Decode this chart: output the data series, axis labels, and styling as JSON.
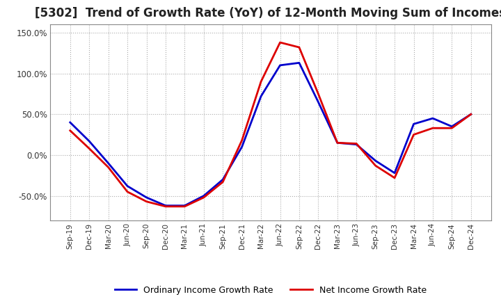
{
  "title": "[5302]  Trend of Growth Rate (YoY) of 12-Month Moving Sum of Incomes",
  "title_fontsize": 12,
  "background_color": "#ffffff",
  "grid_color": "#aaaaaa",
  "ordinary_color": "#0000cc",
  "net_color": "#dd0000",
  "x_labels": [
    "Sep-19",
    "Dec-19",
    "Mar-20",
    "Jun-20",
    "Sep-20",
    "Dec-20",
    "Mar-21",
    "Jun-21",
    "Sep-21",
    "Dec-21",
    "Mar-22",
    "Jun-22",
    "Sep-22",
    "Dec-22",
    "Mar-23",
    "Jun-23",
    "Sep-23",
    "Dec-23",
    "Mar-24",
    "Jun-24",
    "Sep-24",
    "Dec-24"
  ],
  "ordinary_income": [
    0.4,
    0.17,
    -0.1,
    -0.38,
    -0.52,
    -0.62,
    -0.62,
    -0.5,
    -0.3,
    0.1,
    0.72,
    1.1,
    1.13,
    0.65,
    0.15,
    0.13,
    -0.07,
    -0.22,
    0.38,
    0.45,
    0.35,
    0.5
  ],
  "net_income": [
    0.3,
    0.08,
    -0.15,
    -0.45,
    -0.57,
    -0.63,
    -0.63,
    -0.52,
    -0.33,
    0.18,
    0.9,
    1.38,
    1.32,
    0.75,
    0.15,
    0.14,
    -0.13,
    -0.28,
    0.25,
    0.33,
    0.33,
    0.5
  ],
  "ylim": [
    -0.8,
    1.6
  ],
  "yticks": [
    -0.5,
    0.0,
    0.5,
    1.0,
    1.5
  ],
  "ytick_labels": [
    "-50.0%",
    "0.0%",
    "50.0%",
    "100.0%",
    "150.0%"
  ],
  "legend_ordinary": "Ordinary Income Growth Rate",
  "legend_net": "Net Income Growth Rate"
}
